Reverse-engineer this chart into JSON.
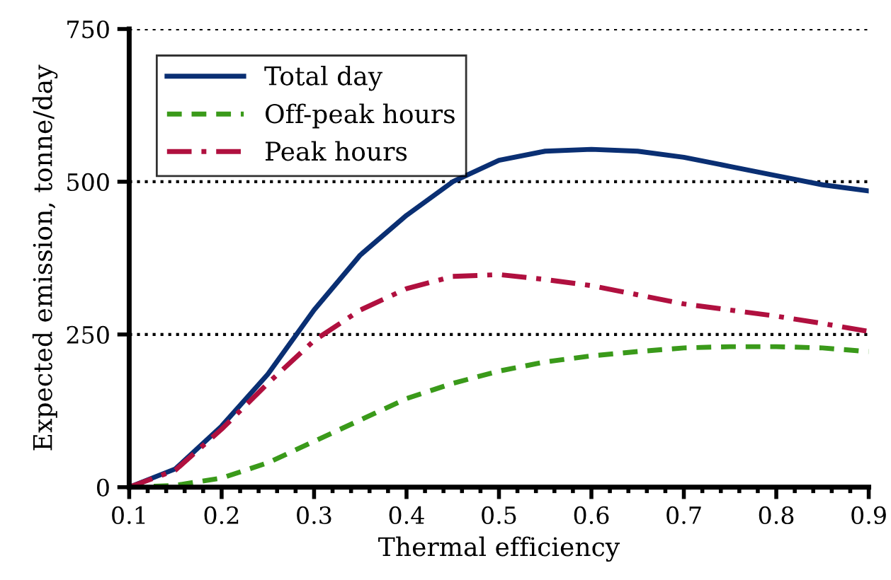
{
  "chart_data": {
    "type": "line",
    "xlabel": "Thermal efficiency",
    "ylabel": "Expected emission, tonne/day",
    "x": [
      0.1,
      0.15,
      0.2,
      0.25,
      0.3,
      0.35,
      0.4,
      0.45,
      0.5,
      0.55,
      0.6,
      0.65,
      0.7,
      0.75,
      0.8,
      0.85,
      0.9
    ],
    "series": [
      {
        "name": "Total day",
        "color": "#0a2f73",
        "line_style": "solid",
        "values": [
          0,
          30,
          100,
          185,
          290,
          380,
          445,
          500,
          535,
          550,
          553,
          550,
          540,
          525,
          510,
          495,
          485
        ]
      },
      {
        "name": "Off-peak hours",
        "color": "#3a9a1a",
        "line_style": "dashed",
        "values": [
          0,
          3,
          15,
          40,
          75,
          110,
          145,
          170,
          190,
          205,
          215,
          222,
          228,
          230,
          230,
          228,
          222
        ]
      },
      {
        "name": "Peak hours",
        "color": "#b0103f",
        "line_style": "dashdot",
        "values": [
          0,
          28,
          95,
          170,
          240,
          290,
          325,
          345,
          348,
          340,
          330,
          315,
          300,
          290,
          280,
          268,
          255
        ]
      }
    ],
    "xlim": [
      0.1,
      0.9
    ],
    "xticks": [
      0.1,
      0.2,
      0.3,
      0.4,
      0.5,
      0.6,
      0.7,
      0.8,
      0.9
    ],
    "ylim": [
      0,
      750
    ],
    "yticks": [
      0,
      250,
      500,
      750
    ],
    "grid": "y",
    "legend": "top left",
    "marker": "none"
  }
}
